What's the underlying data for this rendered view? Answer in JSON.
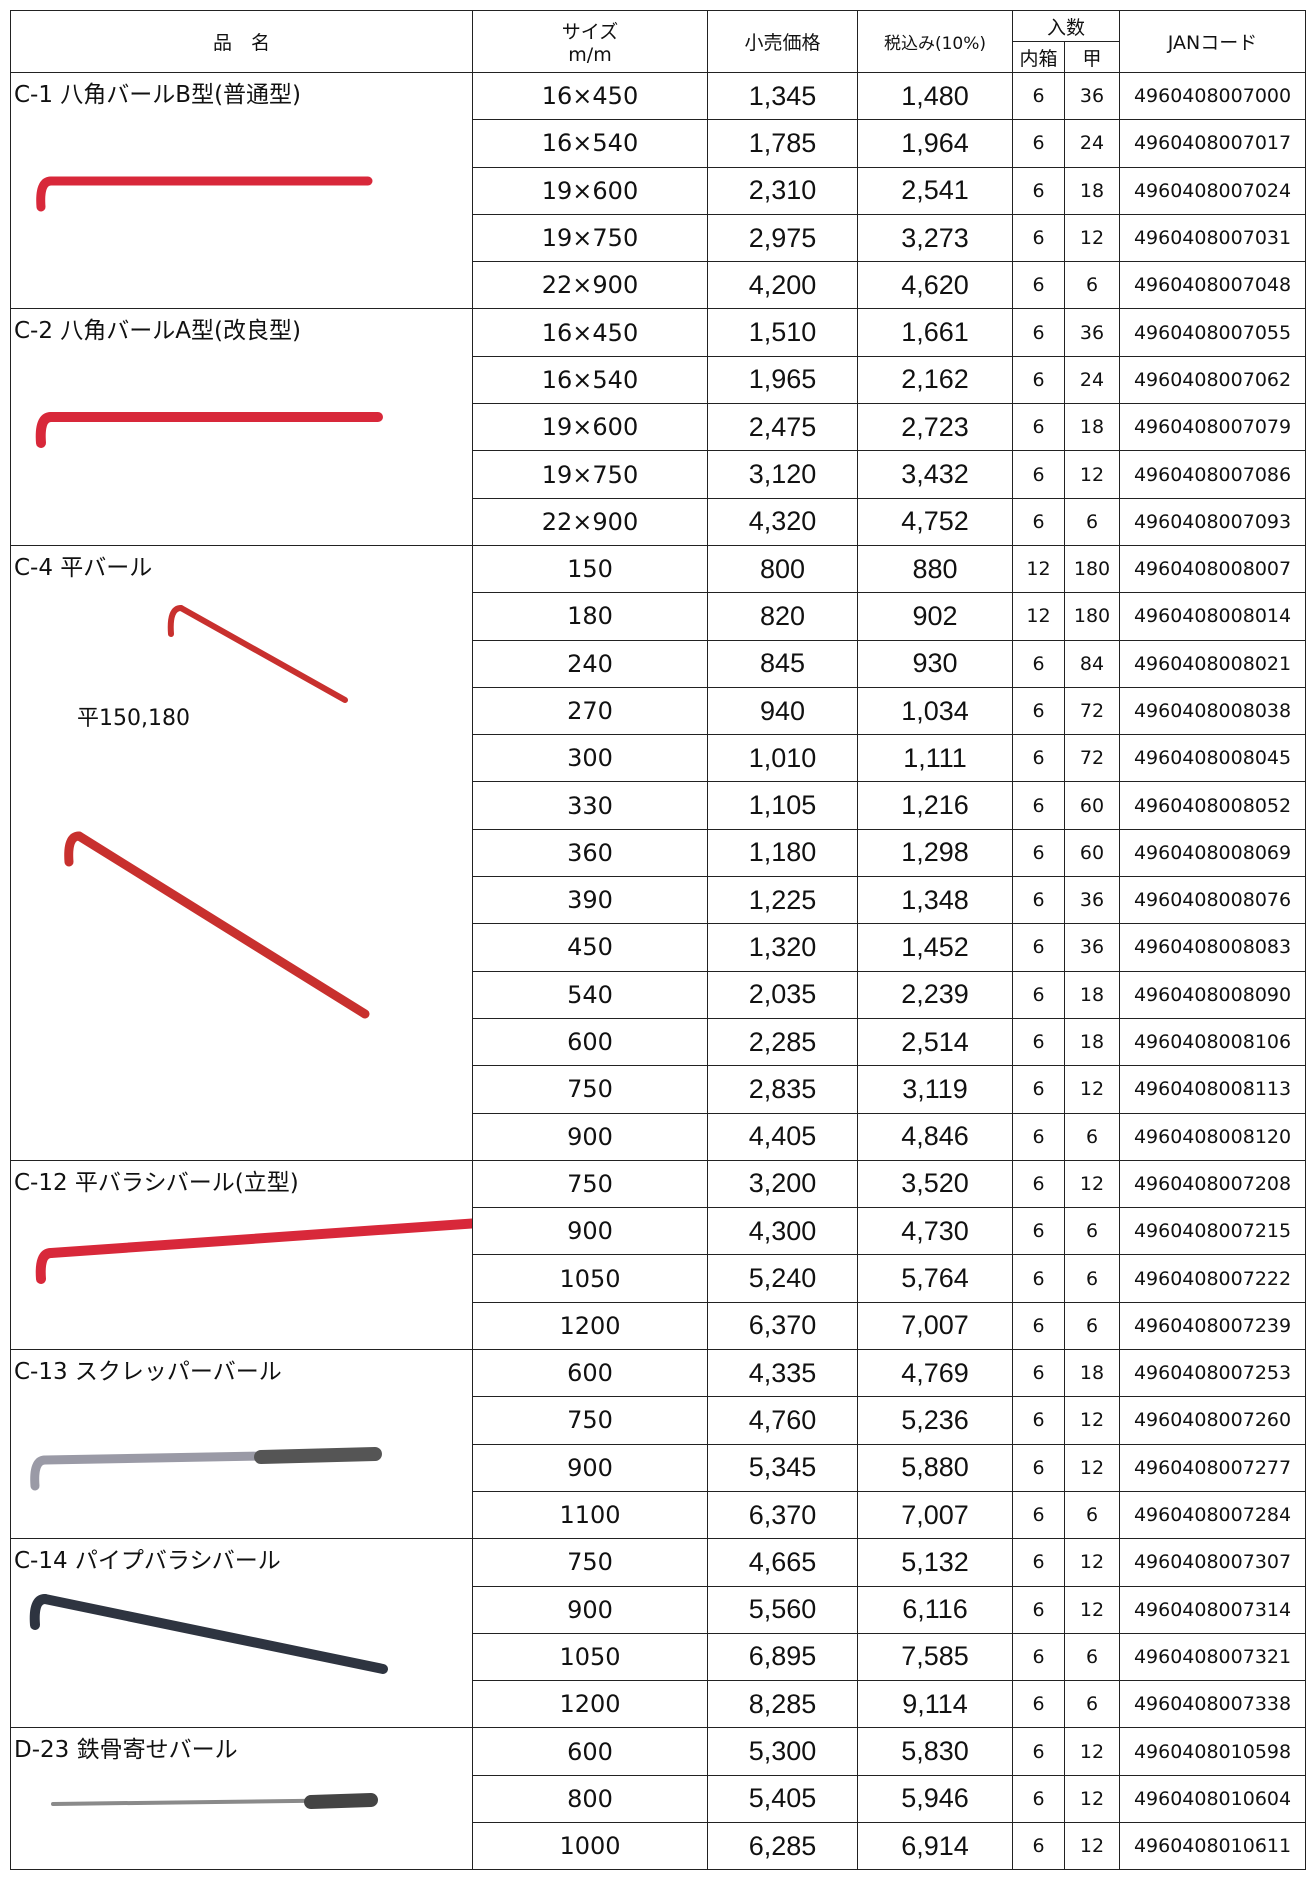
{
  "header": {
    "name": "品　名",
    "size": "サイズ",
    "size_unit": "m/m",
    "retail": "小売価格",
    "tax": "税込み(10%)",
    "qty": "入数",
    "inner": "内箱",
    "outer": "甲",
    "jan": "JANコード"
  },
  "groups": [
    {
      "name": "C-1 八角バールB型(普通型)",
      "rows": [
        [
          "16×450",
          "1,345",
          "1,480",
          "6",
          "36",
          "4960408007000"
        ],
        [
          "16×540",
          "1,785",
          "1,964",
          "6",
          "24",
          "4960408007017"
        ],
        [
          "19×600",
          "2,310",
          "2,541",
          "6",
          "18",
          "4960408007024"
        ],
        [
          "19×750",
          "2,975",
          "3,273",
          "6",
          "12",
          "4960408007031"
        ],
        [
          "22×900",
          "4,200",
          "4,620",
          "6",
          "6",
          "4960408007048"
        ]
      ]
    },
    {
      "name": "C-2 八角バールA型(改良型)",
      "rows": [
        [
          "16×450",
          "1,510",
          "1,661",
          "6",
          "36",
          "4960408007055"
        ],
        [
          "16×540",
          "1,965",
          "2,162",
          "6",
          "24",
          "4960408007062"
        ],
        [
          "19×600",
          "2,475",
          "2,723",
          "6",
          "18",
          "4960408007079"
        ],
        [
          "19×750",
          "3,120",
          "3,432",
          "6",
          "12",
          "4960408007086"
        ],
        [
          "22×900",
          "4,320",
          "4,752",
          "6",
          "6",
          "4960408007093"
        ]
      ]
    },
    {
      "name": "C-4 平バール",
      "note": "平150,180",
      "rows": [
        [
          "150",
          "800",
          "880",
          "12",
          "180",
          "4960408008007"
        ],
        [
          "180",
          "820",
          "902",
          "12",
          "180",
          "4960408008014"
        ],
        [
          "240",
          "845",
          "930",
          "6",
          "84",
          "4960408008021"
        ],
        [
          "270",
          "940",
          "1,034",
          "6",
          "72",
          "4960408008038"
        ],
        [
          "300",
          "1,010",
          "1,111",
          "6",
          "72",
          "4960408008045"
        ],
        [
          "330",
          "1,105",
          "1,216",
          "6",
          "60",
          "4960408008052"
        ],
        [
          "360",
          "1,180",
          "1,298",
          "6",
          "60",
          "4960408008069"
        ],
        [
          "390",
          "1,225",
          "1,348",
          "6",
          "36",
          "4960408008076"
        ],
        [
          "450",
          "1,320",
          "1,452",
          "6",
          "36",
          "4960408008083"
        ],
        [
          "540",
          "2,035",
          "2,239",
          "6",
          "18",
          "4960408008090"
        ],
        [
          "600",
          "2,285",
          "2,514",
          "6",
          "18",
          "4960408008106"
        ],
        [
          "750",
          "2,835",
          "3,119",
          "6",
          "12",
          "4960408008113"
        ],
        [
          "900",
          "4,405",
          "4,846",
          "6",
          "6",
          "4960408008120"
        ]
      ]
    },
    {
      "name": "C-12 平バラシバール(立型)",
      "rows": [
        [
          "750",
          "3,200",
          "3,520",
          "6",
          "12",
          "4960408007208"
        ],
        [
          "900",
          "4,300",
          "4,730",
          "6",
          "6",
          "4960408007215"
        ],
        [
          "1050",
          "5,240",
          "5,764",
          "6",
          "6",
          "4960408007222"
        ],
        [
          "1200",
          "6,370",
          "7,007",
          "6",
          "6",
          "4960408007239"
        ]
      ]
    },
    {
      "name": "C-13 スクレッパーバール",
      "rows": [
        [
          "600",
          "4,335",
          "4,769",
          "6",
          "18",
          "4960408007253"
        ],
        [
          "750",
          "4,760",
          "5,236",
          "6",
          "12",
          "4960408007260"
        ],
        [
          "900",
          "5,345",
          "5,880",
          "6",
          "12",
          "4960408007277"
        ],
        [
          "1100",
          "6,370",
          "7,007",
          "6",
          "6",
          "4960408007284"
        ]
      ]
    },
    {
      "name": "C-14 パイプバラシバール",
      "rows": [
        [
          "750",
          "4,665",
          "5,132",
          "6",
          "12",
          "4960408007307"
        ],
        [
          "900",
          "5,560",
          "6,116",
          "6",
          "12",
          "4960408007314"
        ],
        [
          "1050",
          "6,895",
          "7,585",
          "6",
          "6",
          "4960408007321"
        ],
        [
          "1200",
          "8,285",
          "9,114",
          "6",
          "6",
          "4960408007338"
        ]
      ]
    },
    {
      "name": "D-23 鉄骨寄せバール",
      "rows": [
        [
          "600",
          "5,300",
          "5,830",
          "6",
          "12",
          "4960408010598"
        ],
        [
          "800",
          "5,405",
          "5,946",
          "6",
          "12",
          "4960408010604"
        ],
        [
          "1000",
          "6,285",
          "6,914",
          "6",
          "12",
          "4960408010611"
        ]
      ]
    }
  ]
}
